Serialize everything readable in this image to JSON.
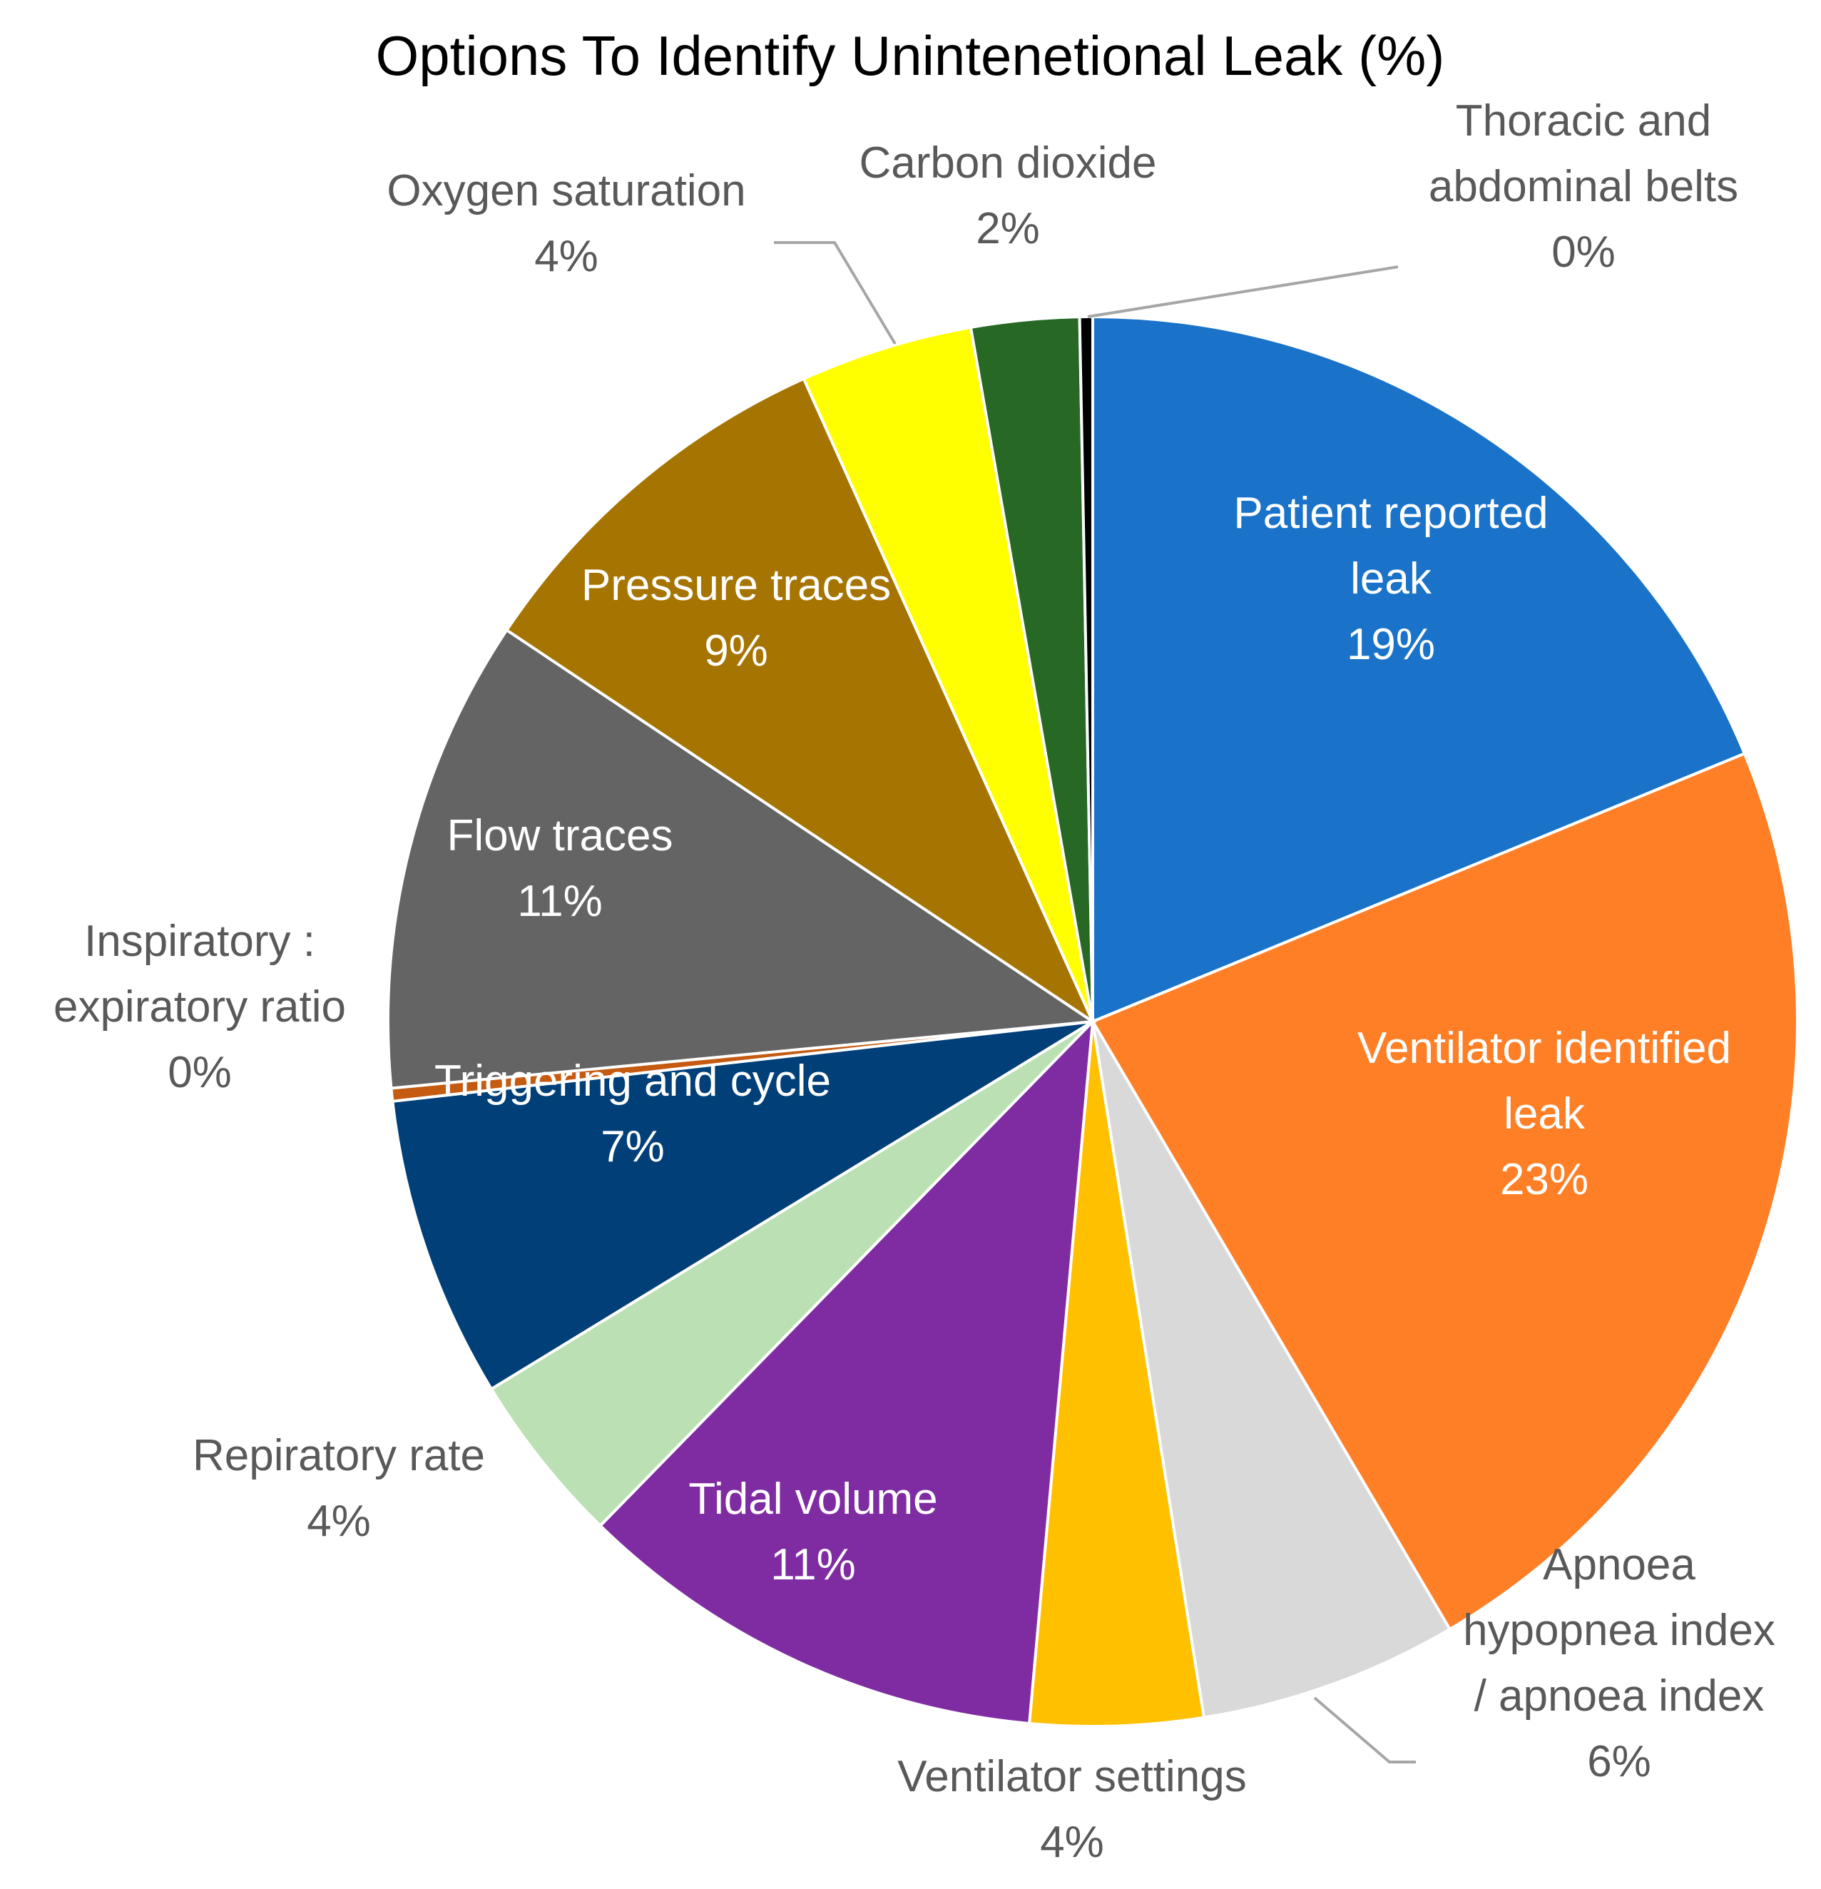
{
  "chart_data": {
    "type": "pie",
    "title": "Options To Identify Unintenetional Leak (%)",
    "slices": [
      {
        "label": [
          "Patient reported",
          "leak"
        ],
        "value": 19,
        "value_label": "19%",
        "color": "#1A73C8",
        "label_color": "#ffffff"
      },
      {
        "label": [
          "Ventilator identified",
          "leak"
        ],
        "value": 23,
        "value_label": "23%",
        "color": "#FF7F27",
        "label_color": "#ffffff"
      },
      {
        "label": [
          "Apnoea",
          "hypopnea index",
          "/ apnoea index"
        ],
        "value": 6,
        "value_label": "6%",
        "color": "#D9D9D9",
        "label_color": "#595959"
      },
      {
        "label": [
          "Ventilator settings"
        ],
        "value": 4,
        "value_label": "4%",
        "color": "#FFC000",
        "label_color": "#595959"
      },
      {
        "label": [
          "Tidal volume"
        ],
        "value": 11,
        "value_label": "11%",
        "color": "#7F2CA3",
        "label_color": "#ffffff"
      },
      {
        "label": [
          "Repiratory rate"
        ],
        "value": 4,
        "value_label": "4%",
        "color": "#BBE0B3",
        "label_color": "#595959"
      },
      {
        "label": [
          "Triggering and cycle"
        ],
        "value": 7,
        "value_label": "7%",
        "color": "#003F78",
        "label_color": "#ffffff"
      },
      {
        "label": [
          "Inspiratory :",
          "expiratory ratio"
        ],
        "value": 0.3,
        "value_label": "0%",
        "color": "#C55A11",
        "label_color": "#595959"
      },
      {
        "label": [
          "Flow traces"
        ],
        "value": 11,
        "value_label": "11%",
        "color": "#646464",
        "label_color": "#ffffff"
      },
      {
        "label": [
          "Pressure traces"
        ],
        "value": 9,
        "value_label": "9%",
        "color": "#A67400",
        "label_color": "#ffffff"
      },
      {
        "label": [
          "Oxygen saturation"
        ],
        "value": 4,
        "value_label": "4%",
        "color": "#FFFF00",
        "label_color": "#595959"
      },
      {
        "label": [
          "Carbon dioxide"
        ],
        "value": 2.5,
        "value_label": "2%",
        "color": "#276825",
        "label_color": "#595959"
      },
      {
        "label": [
          "Thoracic and",
          "abdominal belts"
        ],
        "value": 0.3,
        "value_label": "0%",
        "color": "#000000",
        "label_color": "#595959"
      }
    ],
    "start_angle_deg": 0,
    "direction": "clockwise",
    "legend": "none",
    "leader_line_color": "#A6A6A6"
  }
}
